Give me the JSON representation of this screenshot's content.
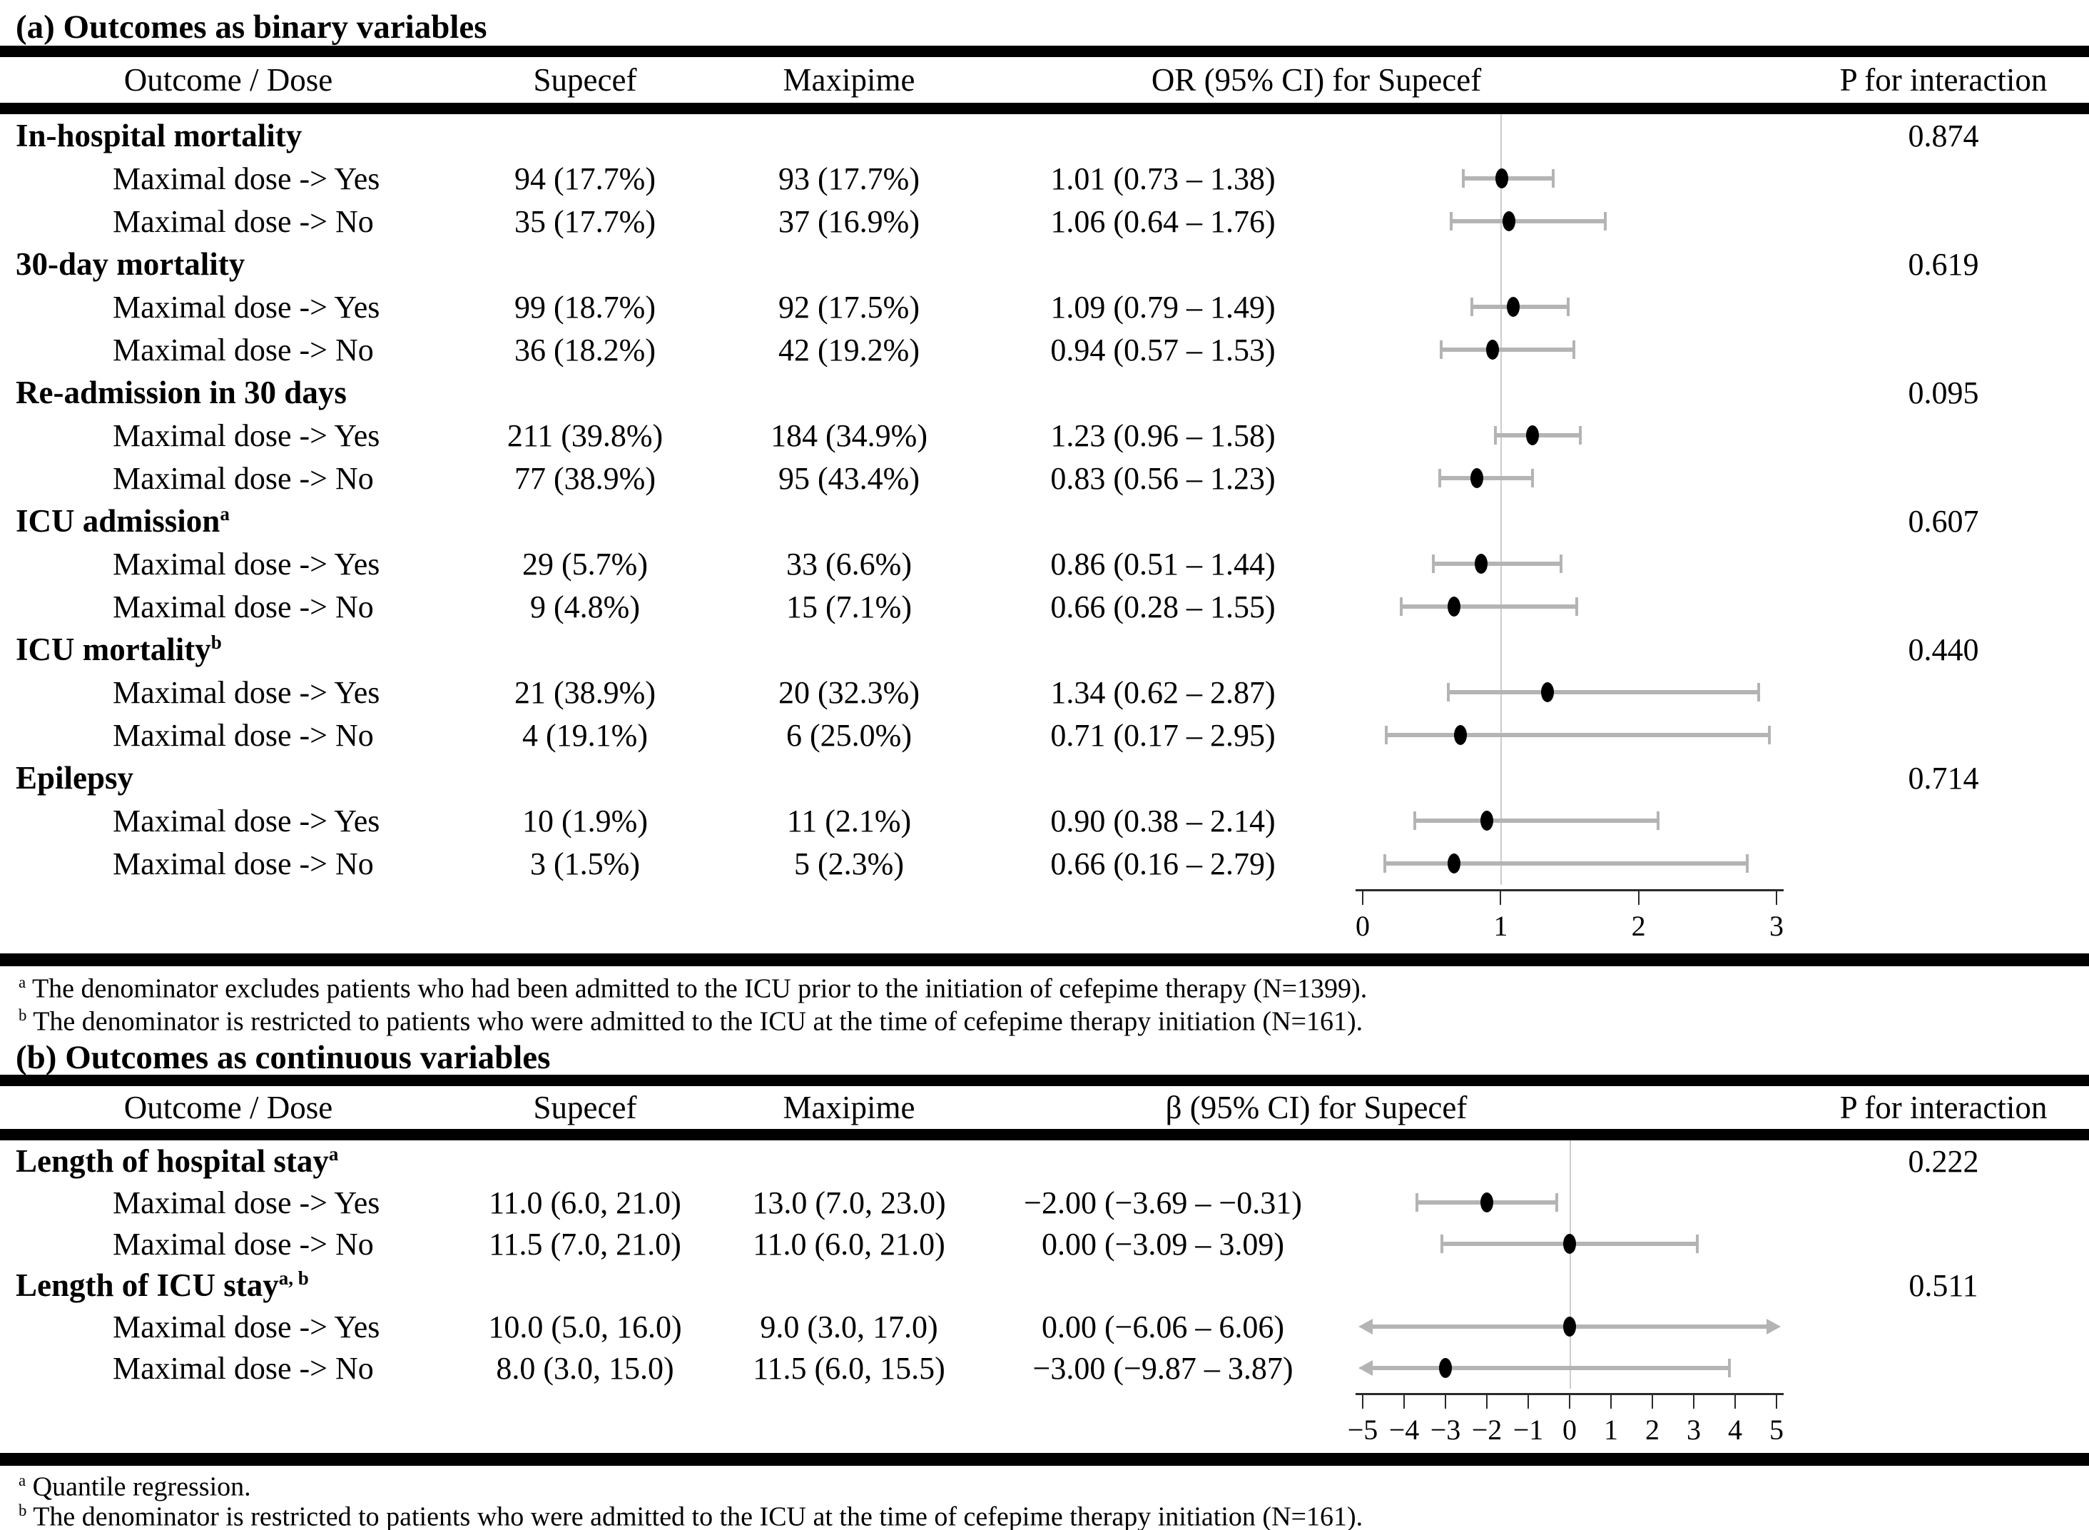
{
  "figure": {
    "tables": [
      {
        "id": "a",
        "title": "(a) Outcomes as binary variables",
        "header": {
          "outcome": "Outcome / Dose",
          "supecef": "Supecef",
          "maxipime": "Maxipime",
          "effect": "OR (95% CI)  for Supecef",
          "p": "P for interaction"
        },
        "rows": [
          {
            "type": "section",
            "label": "In-hospital mortality",
            "sup": "",
            "p": "0.874"
          },
          {
            "type": "data",
            "label": "Maximal dose -> Yes",
            "supecef": "94 (17.7%)",
            "maxipime": "93 (17.7%)",
            "effect": "1.01 (0.73 – 1.38)",
            "point": 0
          },
          {
            "type": "data",
            "label": "Maximal dose -> No",
            "supecef": "35 (17.7%)",
            "maxipime": "37 (16.9%)",
            "effect": "1.06 (0.64 – 1.76)",
            "point": 1
          },
          {
            "type": "section",
            "label": "30-day mortality",
            "sup": "",
            "p": "0.619"
          },
          {
            "type": "data",
            "label": "Maximal dose -> Yes",
            "supecef": "99 (18.7%)",
            "maxipime": "92 (17.5%)",
            "effect": "1.09 (0.79 – 1.49)",
            "point": 2
          },
          {
            "type": "data",
            "label": "Maximal dose -> No",
            "supecef": "36 (18.2%)",
            "maxipime": "42 (19.2%)",
            "effect": "0.94 (0.57 – 1.53)",
            "point": 3
          },
          {
            "type": "section",
            "label": "Re-admission in 30 days",
            "sup": "",
            "p": "0.095"
          },
          {
            "type": "data",
            "label": "Maximal dose -> Yes",
            "supecef": "211 (39.8%)",
            "maxipime": "184 (34.9%)",
            "effect": "1.23 (0.96 – 1.58)",
            "point": 4
          },
          {
            "type": "data",
            "label": "Maximal dose -> No",
            "supecef": "77 (38.9%)",
            "maxipime": "95 (43.4%)",
            "effect": "0.83 (0.56 – 1.23)",
            "point": 5
          },
          {
            "type": "section",
            "label": "ICU admission",
            "sup": "a",
            "p": "0.607"
          },
          {
            "type": "data",
            "label": "Maximal dose -> Yes",
            "supecef": "29 (5.7%)",
            "maxipime": "33 (6.6%)",
            "effect": "0.86 (0.51 – 1.44)",
            "point": 6
          },
          {
            "type": "data",
            "label": "Maximal dose -> No",
            "supecef": "9 (4.8%)",
            "maxipime": "15 (7.1%)",
            "effect": "0.66 (0.28 – 1.55)",
            "point": 7
          },
          {
            "type": "section",
            "label": "ICU mortality",
            "sup": "b",
            "p": "0.440"
          },
          {
            "type": "data",
            "label": "Maximal dose -> Yes",
            "supecef": "21 (38.9%)",
            "maxipime": "20 (32.3%)",
            "effect": "1.34 (0.62 – 2.87)",
            "point": 8
          },
          {
            "type": "data",
            "label": "Maximal dose -> No",
            "supecef": "4 (19.1%)",
            "maxipime": "6 (25.0%)",
            "effect": "0.71 (0.17 – 2.95)",
            "point": 9
          },
          {
            "type": "section",
            "label": "Epilepsy",
            "sup": "",
            "p": "0.714"
          },
          {
            "type": "data",
            "label": "Maximal dose -> Yes",
            "supecef": "10 (1.9%)",
            "maxipime": "11 (2.1%)",
            "effect": "0.90 (0.38 – 2.14)",
            "point": 10
          },
          {
            "type": "data",
            "label": "Maximal dose -> No",
            "supecef": "3 (1.5%)",
            "maxipime": "5 (2.3%)",
            "effect": "0.66 (0.16 – 2.79)",
            "point": 11
          }
        ],
        "footnotes": [
          {
            "marker": "a",
            "text": "The denominator excludes patients who had been admitted to the ICU prior to the initiation of cefepime therapy (N=1399)."
          },
          {
            "marker": "b",
            "text": "The denominator is restricted to patients who were admitted to the ICU at the time of cefepime therapy initiation (N=161)."
          }
        ],
        "chart": 0
      },
      {
        "id": "b",
        "title": "(b) Outcomes as continuous variables",
        "header": {
          "outcome": "Outcome / Dose",
          "supecef": "Supecef",
          "maxipime": "Maxipime",
          "effect": "β (95% CI)  for Supecef",
          "p": "P for interaction"
        },
        "rows": [
          {
            "type": "section",
            "label": "Length of hospital stay",
            "sup": "a",
            "p": "0.222"
          },
          {
            "type": "data",
            "label": "Maximal dose -> Yes",
            "supecef": "11.0 (6.0, 21.0)",
            "maxipime": "13.0 (7.0, 23.0)",
            "effect": "−2.00 (−3.69 – −0.31)",
            "point": 0
          },
          {
            "type": "data",
            "label": "Maximal dose -> No",
            "supecef": "11.5 (7.0, 21.0)",
            "maxipime": "11.0 (6.0, 21.0)",
            "effect": "0.00 (−3.09 – 3.09)",
            "point": 1
          },
          {
            "type": "section",
            "label": "Length of ICU stay",
            "sup": "a, b",
            "p": "0.511"
          },
          {
            "type": "data",
            "label": "Maximal dose -> Yes",
            "supecef": "10.0 (5.0, 16.0)",
            "maxipime": "9.0 (3.0, 17.0)",
            "effect": "0.00 (−6.06 – 6.06)",
            "point": 2
          },
          {
            "type": "data",
            "label": "Maximal dose -> No",
            "supecef": "8.0 (3.0, 15.0)",
            "maxipime": "11.5 (6.0, 15.5)",
            "effect": "−3.00 (−9.87 – 3.87)",
            "point": 3
          }
        ],
        "footnotes": [
          {
            "marker": "a",
            "text": "Quantile regression."
          },
          {
            "marker": "b",
            "text": "The denominator is restricted to patients who were admitted to the ICU at the time of cefepime therapy initiation (N=161)."
          }
        ],
        "chart": 1
      }
    ],
    "colors": {
      "ci_bar": "#b4b4b4",
      "reference_line": "#cccccc",
      "marker": "#000000",
      "axis": "#2a2a2a"
    }
  },
  "chart_data": [
    {
      "id": "a",
      "type": "forest",
      "title": "OR (95% CI) for Supecef",
      "axis": {
        "min": 0,
        "max": 3,
        "tick_values": [
          0,
          1,
          2,
          3
        ],
        "tick_labels": [
          "0",
          "1",
          "2",
          "3"
        ],
        "ref_line": 1
      },
      "points": [
        {
          "outcome": "In-hospital mortality",
          "dose": "Maximal dose -> Yes",
          "est": 1.01,
          "lo": 0.73,
          "hi": 1.38
        },
        {
          "outcome": "In-hospital mortality",
          "dose": "Maximal dose -> No",
          "est": 1.06,
          "lo": 0.64,
          "hi": 1.76
        },
        {
          "outcome": "30-day mortality",
          "dose": "Maximal dose -> Yes",
          "est": 1.09,
          "lo": 0.79,
          "hi": 1.49
        },
        {
          "outcome": "30-day mortality",
          "dose": "Maximal dose -> No",
          "est": 0.94,
          "lo": 0.57,
          "hi": 1.53
        },
        {
          "outcome": "Re-admission in 30 days",
          "dose": "Maximal dose -> Yes",
          "est": 1.23,
          "lo": 0.96,
          "hi": 1.58
        },
        {
          "outcome": "Re-admission in 30 days",
          "dose": "Maximal dose -> No",
          "est": 0.83,
          "lo": 0.56,
          "hi": 1.23
        },
        {
          "outcome": "ICU admission",
          "dose": "Maximal dose -> Yes",
          "est": 0.86,
          "lo": 0.51,
          "hi": 1.44
        },
        {
          "outcome": "ICU admission",
          "dose": "Maximal dose -> No",
          "est": 0.66,
          "lo": 0.28,
          "hi": 1.55
        },
        {
          "outcome": "ICU mortality",
          "dose": "Maximal dose -> Yes",
          "est": 1.34,
          "lo": 0.62,
          "hi": 2.87
        },
        {
          "outcome": "ICU mortality",
          "dose": "Maximal dose -> No",
          "est": 0.71,
          "lo": 0.17,
          "hi": 2.95
        },
        {
          "outcome": "Epilepsy",
          "dose": "Maximal dose -> Yes",
          "est": 0.9,
          "lo": 0.38,
          "hi": 2.14
        },
        {
          "outcome": "Epilepsy",
          "dose": "Maximal dose -> No",
          "est": 0.66,
          "lo": 0.16,
          "hi": 2.79
        }
      ]
    },
    {
      "id": "b",
      "type": "forest",
      "title": "β (95% CI) for Supecef",
      "axis": {
        "min": -5,
        "max": 5,
        "tick_values": [
          -5,
          -4,
          -3,
          -2,
          -1,
          0,
          1,
          2,
          3,
          4,
          5
        ],
        "tick_labels": [
          "−5",
          "−4",
          "−3",
          "−2",
          "−1",
          "0",
          "1",
          "2",
          "3",
          "4",
          "5"
        ],
        "ref_line": 0
      },
      "points": [
        {
          "outcome": "Length of hospital stay",
          "dose": "Maximal dose -> Yes",
          "est": -2.0,
          "lo": -3.69,
          "hi": -0.31
        },
        {
          "outcome": "Length of hospital stay",
          "dose": "Maximal dose -> No",
          "est": 0.0,
          "lo": -3.09,
          "hi": 3.09
        },
        {
          "outcome": "Length of ICU stay",
          "dose": "Maximal dose -> Yes",
          "est": 0.0,
          "lo": -6.06,
          "hi": 6.06
        },
        {
          "outcome": "Length of ICU stay",
          "dose": "Maximal dose -> No",
          "est": -3.0,
          "lo": -9.87,
          "hi": 3.87
        }
      ]
    }
  ]
}
